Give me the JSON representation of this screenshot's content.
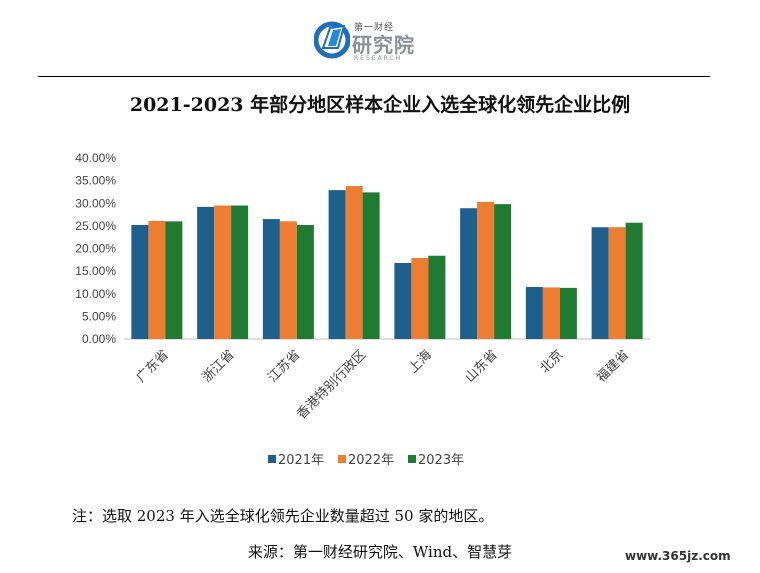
{
  "logo": {
    "top_text": "第一财经",
    "main_text": "研究院",
    "sub_text": "RESEARCH"
  },
  "note": "注：选取 2023 年入选全球化领先企业数量超过 50 家的地区。",
  "source": "来源：第一财经研究院、Wind、智慧芽",
  "watermark": "www.365jz.com",
  "colors": {
    "series_2021": "#1f5f8b",
    "series_2022": "#ed7d31",
    "series_2023": "#217a32"
  },
  "chart_data": {
    "type": "bar",
    "title": "2021-2023 年部分地区样本企业入选全球化领先企业比例",
    "categories": [
      "广东省",
      "浙江省",
      "江苏省",
      "香港特别行政区",
      "上海",
      "山东省",
      "北京",
      "福建省"
    ],
    "series": [
      {
        "name": "2021年",
        "values": [
          25.2,
          29.2,
          26.5,
          32.9,
          16.8,
          28.9,
          11.5,
          24.7
        ]
      },
      {
        "name": "2022年",
        "values": [
          26.1,
          29.5,
          26.0,
          33.8,
          17.9,
          30.3,
          11.4,
          24.7
        ]
      },
      {
        "name": "2023年",
        "values": [
          26.0,
          29.5,
          25.2,
          32.4,
          18.4,
          29.8,
          11.3,
          25.7
        ]
      }
    ],
    "ylim": [
      0,
      40
    ],
    "yticks": [
      "0.00%",
      "5.00%",
      "10.00%",
      "15.00%",
      "20.00%",
      "25.00%",
      "30.00%",
      "35.00%",
      "40.00%"
    ],
    "xlabel": "",
    "ylabel": "",
    "grid": false,
    "legend": "bottom"
  }
}
